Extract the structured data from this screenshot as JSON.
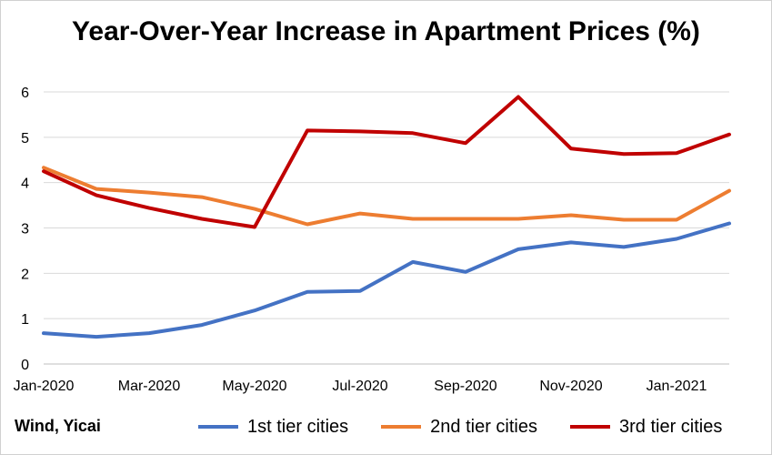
{
  "chart_data": {
    "type": "line",
    "title": "Year-Over-Year Increase in Apartment Prices (%)",
    "source": "Wind, Yicai",
    "ylim": [
      0,
      6
    ],
    "yticks": [
      0,
      1,
      2,
      3,
      4,
      5,
      6
    ],
    "grid": true,
    "legend_position": "bottom",
    "x": [
      "Jan-2020",
      "Feb-2020",
      "Mar-2020",
      "Apr-2020",
      "May-2020",
      "Jun-2020",
      "Jul-2020",
      "Aug-2020",
      "Sep-2020",
      "Oct-2020",
      "Nov-2020",
      "Dec-2020",
      "Jan-2021",
      "Feb-2021"
    ],
    "x_tick_labels": [
      "Jan-2020",
      "",
      "Mar-2020",
      "",
      "May-2020",
      "",
      "Jul-2020",
      "",
      "Sep-2020",
      "",
      "Nov-2020",
      "",
      "Jan-2021",
      ""
    ],
    "series": [
      {
        "name": "1st tier cities",
        "color": "#4472C4",
        "values": [
          0.68,
          0.6,
          0.68,
          0.86,
          1.18,
          1.59,
          1.61,
          2.25,
          2.03,
          2.53,
          2.68,
          2.58,
          2.76,
          3.1
        ]
      },
      {
        "name": "2nd tier cities",
        "color": "#ED7D31",
        "values": [
          4.33,
          3.86,
          3.78,
          3.68,
          3.42,
          3.08,
          3.32,
          3.2,
          3.2,
          3.2,
          3.28,
          3.18,
          3.18,
          3.82
        ]
      },
      {
        "name": "3rd tier cities",
        "color": "#C00000",
        "values": [
          4.25,
          3.72,
          3.44,
          3.2,
          3.02,
          5.15,
          5.13,
          5.09,
          4.87,
          5.89,
          4.75,
          4.63,
          4.65,
          5.06
        ]
      }
    ]
  }
}
